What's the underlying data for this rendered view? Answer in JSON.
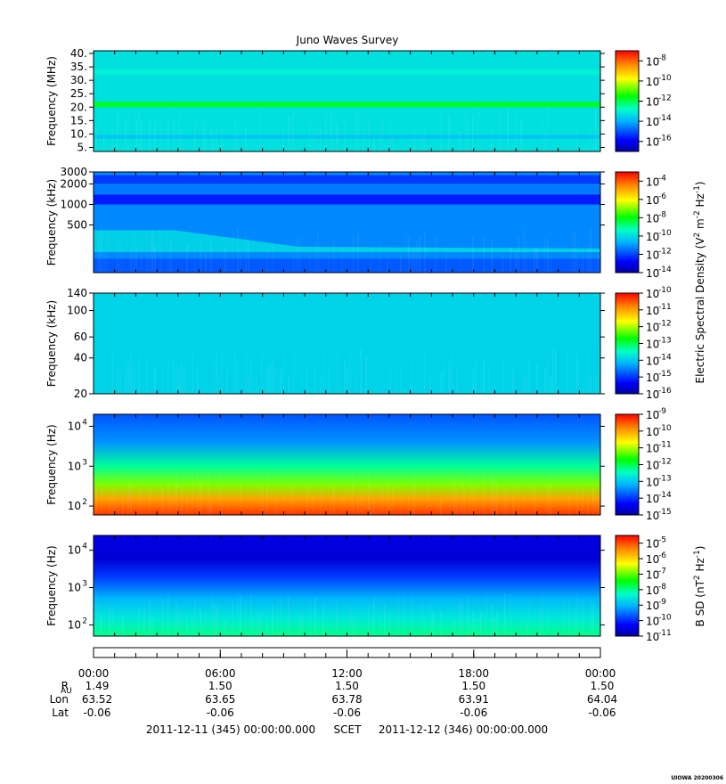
{
  "chart_data": {
    "type": "heatmap",
    "title": "Juno Waves Survey",
    "footer": "UIOWA 20200306",
    "time_axis": {
      "ticks": [
        "00:00",
        "06:00",
        "12:00",
        "18:00",
        "00:00"
      ],
      "rows": [
        {
          "label": "R",
          "sub": "AU",
          "values": [
            "1.49",
            "1.50",
            "1.50",
            "1.50",
            "1.50"
          ]
        },
        {
          "label": "Lon",
          "sub": "",
          "values": [
            "63.52",
            "63.65",
            "63.78",
            "63.91",
            "64.04"
          ]
        },
        {
          "label": "Lat",
          "sub": "",
          "values": [
            "-0.06",
            "-0.06",
            "-0.06",
            "-0.06",
            "-0.06"
          ]
        }
      ],
      "start": "2011-12-11 (345) 00:00:00.000",
      "label": "SCET",
      "end": "2011-12-12 (346) 00:00:00.000"
    },
    "panels": [
      {
        "ylabel": "Frequency (MHz)",
        "yscale": "linear",
        "ylim": [
          3.5,
          41
        ],
        "yticks": [
          {
            "v": 5,
            "t": "5."
          },
          {
            "v": 10,
            "t": "10."
          },
          {
            "v": 15,
            "t": "15."
          },
          {
            "v": 20,
            "t": "20."
          },
          {
            "v": 25,
            "t": "25."
          },
          {
            "v": 30,
            "t": "30."
          },
          {
            "v": 35,
            "t": "35."
          },
          {
            "v": 40,
            "t": "40."
          }
        ],
        "colorbar": {
          "exp_min": -17,
          "exp_max": -7,
          "labels": [
            -8,
            -10,
            -12,
            -14,
            -16
          ]
        },
        "background_log": -13.3,
        "bands": [
          {
            "y0": 20.0,
            "y1": 22.0,
            "log": -11.6
          },
          {
            "y0": 8.3,
            "y1": 9.6,
            "log": -13.8
          },
          {
            "y0": 32.0,
            "y1": 34.0,
            "log": -13.0
          }
        ]
      },
      {
        "ylabel": "Frequency (kHz)",
        "yscale": "log",
        "ylim": [
          100,
          3000
        ],
        "yticks": [
          {
            "v": 500,
            "t": "500"
          },
          {
            "v": 1000,
            "t": "1000"
          },
          {
            "v": 2000,
            "t": "2000"
          },
          {
            "v": 3000,
            "t": "3000"
          }
        ],
        "colorbar": {
          "exp_min": -14,
          "exp_max": -3,
          "labels": [
            -4,
            -6,
            -8,
            -10,
            -12,
            -14
          ]
        },
        "background_log": -11.2,
        "bands": [
          {
            "y0": 2000,
            "y1": 2700,
            "log": -12.2
          },
          {
            "y0": 1000,
            "y1": 1400,
            "log": -12.6
          },
          {
            "y0": 1450,
            "y1": 1900,
            "log": -11.4
          },
          {
            "y0": 200,
            "y1": 420,
            "log": -10.0,
            "taper": true
          },
          {
            "y0": 100,
            "y1": 160,
            "log": -11.8
          }
        ]
      },
      {
        "ylabel": "Frequency (kHz)",
        "yscale": "log",
        "ylim": [
          20,
          140
        ],
        "yticks": [
          {
            "v": 20,
            "t": "20"
          },
          {
            "v": 40,
            "t": "40"
          },
          {
            "v": 60,
            "t": "60"
          },
          {
            "v": 100,
            "t": "100"
          },
          {
            "v": 140,
            "t": "140"
          }
        ],
        "colorbar": {
          "exp_min": -16,
          "exp_max": -10,
          "labels": [
            -10,
            -11,
            -12,
            -13,
            -14,
            -15,
            -16
          ]
        },
        "background_log": -13.9,
        "bands": []
      },
      {
        "ylabel": "Frequency (Hz)",
        "yscale": "log",
        "ylim": [
          60,
          20000
        ],
        "yticks": [
          {
            "v": 100,
            "t": "10",
            "e": "2"
          },
          {
            "v": 1000,
            "t": "10",
            "e": "3"
          },
          {
            "v": 10000,
            "t": "10",
            "e": "4"
          }
        ],
        "colorbar": {
          "exp_min": -15,
          "exp_max": -9,
          "labels": [
            -9,
            -10,
            -11,
            -12,
            -13,
            -14,
            -15
          ]
        },
        "gradient": [
          {
            "f": 60,
            "log": -9.3
          },
          {
            "f": 150,
            "log": -10.0
          },
          {
            "f": 350,
            "log": -11.2
          },
          {
            "f": 1000,
            "log": -12.3
          },
          {
            "f": 4000,
            "log": -13.4
          },
          {
            "f": 20000,
            "log": -13.8
          }
        ]
      },
      {
        "ylabel": "Frequency (Hz)",
        "yscale": "log",
        "ylim": [
          50,
          25000
        ],
        "yticks": [
          {
            "v": 100,
            "t": "10",
            "e": "2"
          },
          {
            "v": 1000,
            "t": "10",
            "e": "3"
          },
          {
            "v": 10000,
            "t": "10",
            "e": "4"
          }
        ],
        "colorbar": {
          "exp_min": -11,
          "exp_max": -4.5,
          "labels": [
            -5,
            -6,
            -7,
            -8,
            -9,
            -10,
            -11
          ]
        },
        "gradient": [
          {
            "f": 50,
            "log": -8.0
          },
          {
            "f": 150,
            "log": -8.5
          },
          {
            "f": 500,
            "log": -9.0
          },
          {
            "f": 2000,
            "log": -9.9
          },
          {
            "f": 6000,
            "log": -10.6
          },
          {
            "f": 25000,
            "log": -10.5
          }
        ]
      }
    ],
    "colorbar_titles": [
      {
        "text": "Electric Spectral Density (V",
        "sup1": "2",
        "mid": " m",
        "sup2": "-2",
        "mid2": " Hz",
        "sup3": "-1",
        "end": ")"
      },
      {
        "text": "B SD (nT",
        "sup1": "2",
        "mid": " Hz",
        "sup2": "-1",
        "mid2": "",
        "sup3": "",
        "end": ")"
      }
    ]
  }
}
